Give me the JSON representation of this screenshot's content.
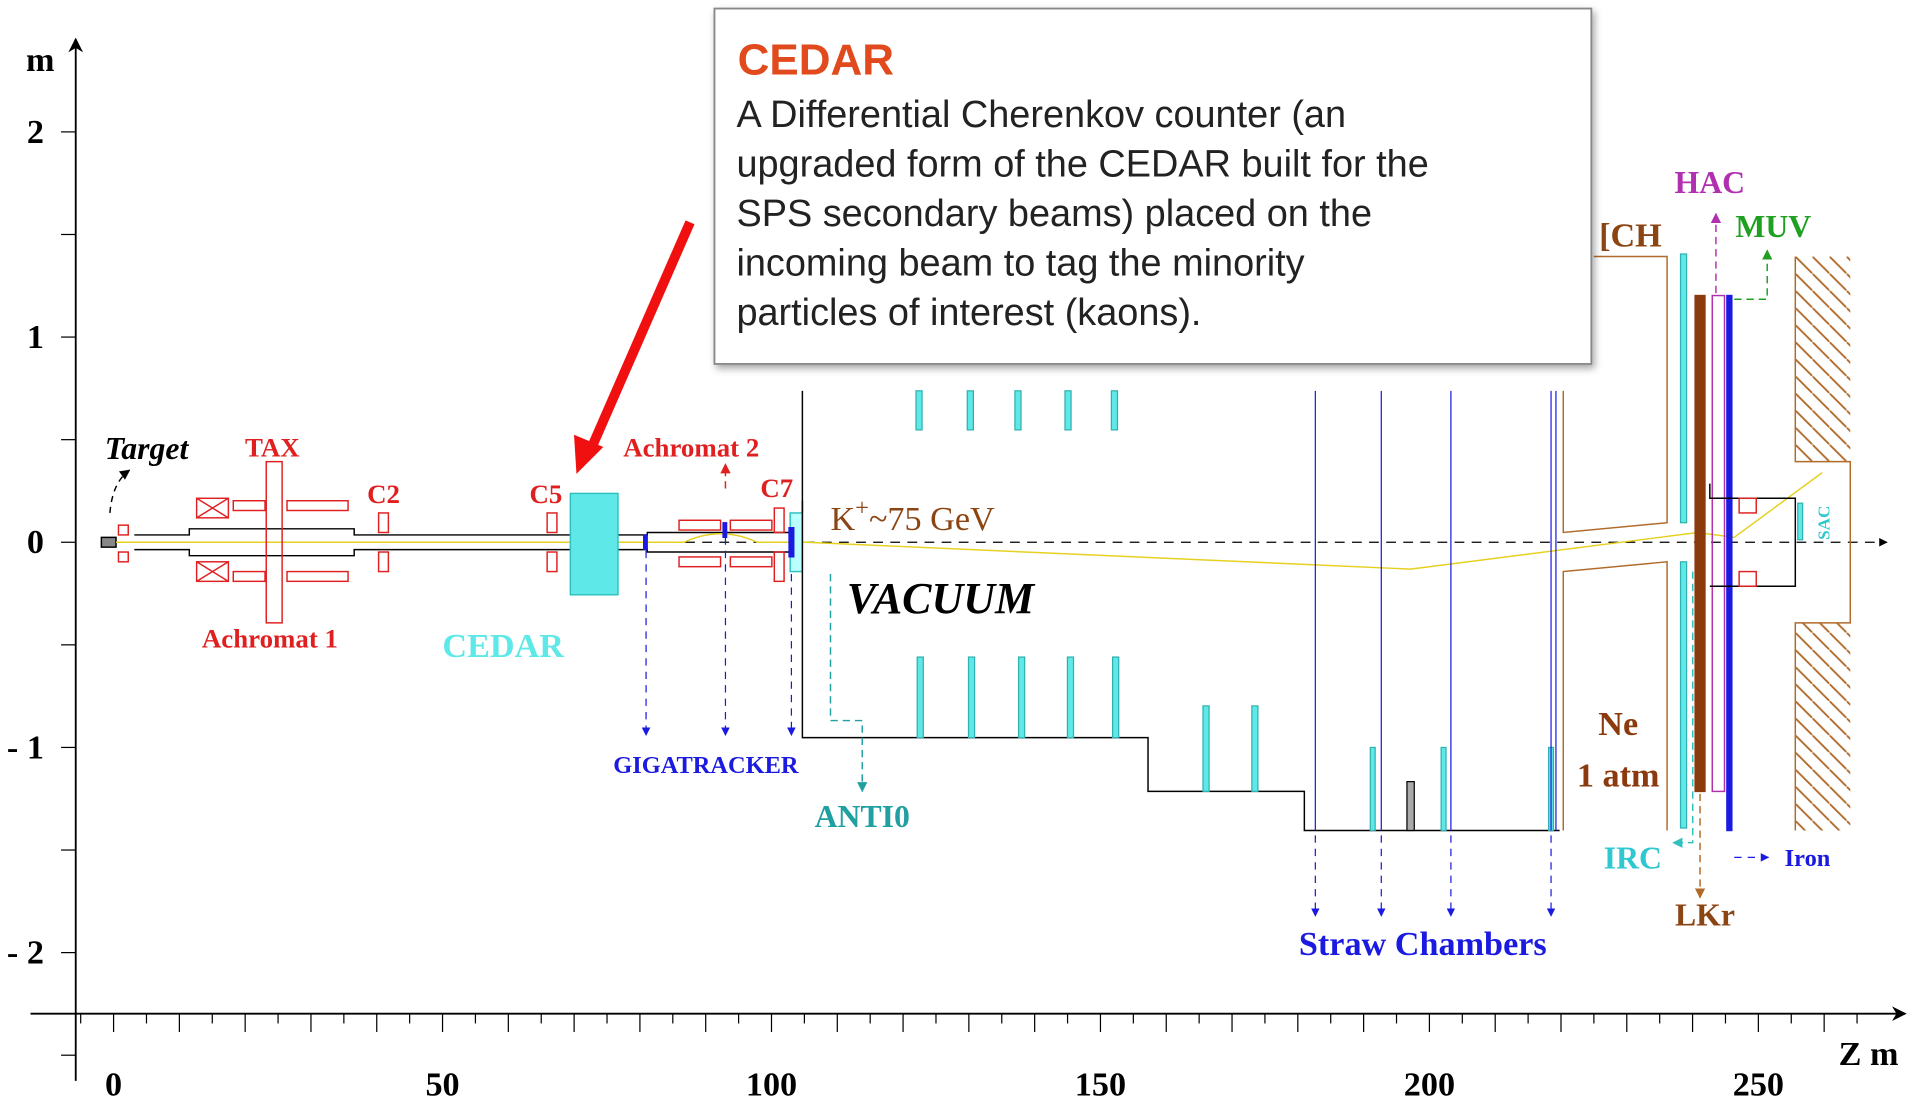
{
  "axes": {
    "y_label": "m",
    "y_ticks": [
      "2",
      "1",
      "0",
      "- 1",
      "- 2"
    ],
    "x_label": "Z  m",
    "x_ticks": [
      "0",
      "50",
      "100",
      "150",
      "200",
      "250"
    ]
  },
  "labels": {
    "target": "Target",
    "tax": "TAX",
    "c2": "C2",
    "c5": "C5",
    "achromat2": "Achromat 2",
    "c7": "C7",
    "achromat1": "Achromat 1",
    "cedar": "CEDAR",
    "vacuum": "VACUUM",
    "gigatracker": "GIGATRACKER",
    "anti0": "ANTI0",
    "straw": "Straw Chambers",
    "ne": "Ne",
    "atm": "1 atm",
    "hac": "HAC",
    "muv": "MUV",
    "rich": "[CH",
    "irc": "IRC",
    "iron": "Iron",
    "lkr": "LKr",
    "sac": "SAC",
    "beam": {
      "base": "K",
      "sup": "+",
      "rest": "~75 GeV"
    }
  },
  "popup": {
    "title": "CEDAR",
    "lines": [
      "A Differential Cherenkov counter (an",
      "upgraded form of the CEDAR built for the",
      "SPS secondary beams) placed on the",
      "incoming beam to tag the minority",
      "particles of interest (kaons)."
    ]
  }
}
